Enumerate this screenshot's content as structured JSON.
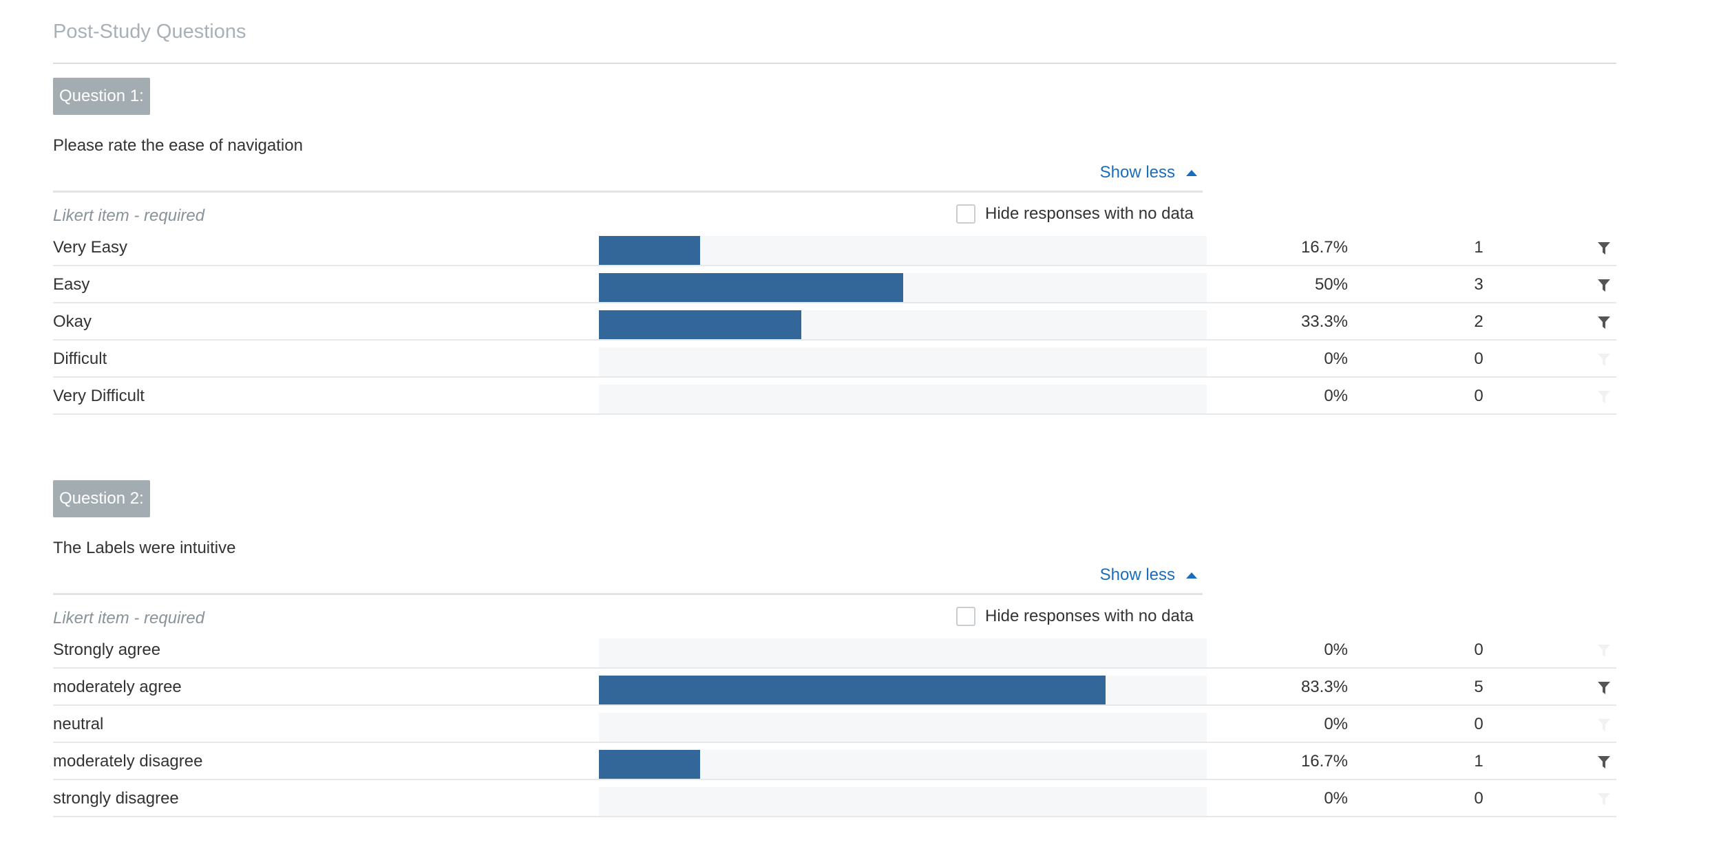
{
  "section_title": "Post-Study Questions",
  "show_less_label": "Show less",
  "hide_label": "Hide responses with no data",
  "likert_prefix": "Likert item",
  "likert_suffix": " - required",
  "colors": {
    "bar": "#336699",
    "track": "#f6f7f8",
    "badge": "#a3acb1",
    "link": "#1a6dbd",
    "filter_active": "#555555",
    "filter_inactive": "#f0f1f2"
  },
  "questions": [
    {
      "badge": "Question 1:",
      "text": "Please rate the ease of navigation",
      "rows": [
        {
          "label": "Very Easy",
          "percent_text": "16.7%",
          "count": "1",
          "fraction": 0.167,
          "filter_active": true
        },
        {
          "label": "Easy",
          "percent_text": "50%",
          "count": "3",
          "fraction": 0.5,
          "filter_active": true
        },
        {
          "label": "Okay",
          "percent_text": "33.3%",
          "count": "2",
          "fraction": 0.333,
          "filter_active": true
        },
        {
          "label": "Difficult",
          "percent_text": "0%",
          "count": "0",
          "fraction": 0,
          "filter_active": false
        },
        {
          "label": "Very Difficult",
          "percent_text": "0%",
          "count": "0",
          "fraction": 0,
          "filter_active": false
        }
      ]
    },
    {
      "badge": "Question 2:",
      "text": "The Labels were intuitive",
      "rows": [
        {
          "label": "Strongly agree",
          "percent_text": "0%",
          "count": "0",
          "fraction": 0,
          "filter_active": false
        },
        {
          "label": "moderately agree",
          "percent_text": "83.3%",
          "count": "5",
          "fraction": 0.833,
          "filter_active": true
        },
        {
          "label": "neutral",
          "percent_text": "0%",
          "count": "0",
          "fraction": 0,
          "filter_active": false
        },
        {
          "label": "moderately disagree",
          "percent_text": "16.7%",
          "count": "1",
          "fraction": 0.167,
          "filter_active": true
        },
        {
          "label": "strongly disagree",
          "percent_text": "0%",
          "count": "0",
          "fraction": 0,
          "filter_active": false
        }
      ]
    }
  ]
}
